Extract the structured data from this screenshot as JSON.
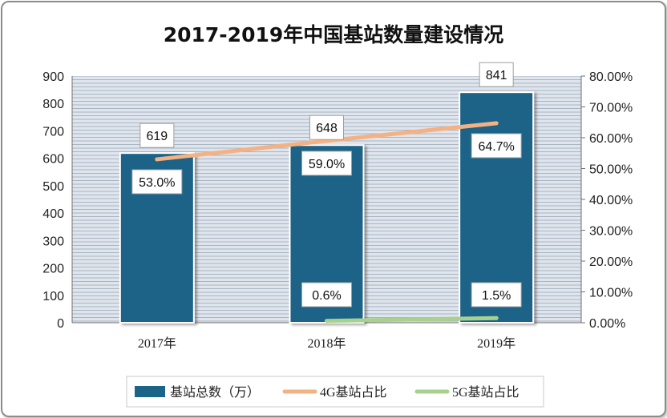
{
  "chart_data": {
    "type": "bar",
    "title": "2017-2019年中国基站数量建设情况",
    "categories": [
      "2017年",
      "2018年",
      "2019年"
    ],
    "series": [
      {
        "name": "基站总数（万）",
        "type": "bar",
        "axis": "left",
        "values": [
          619,
          648,
          841
        ],
        "labels": [
          "619",
          "648",
          "841"
        ],
        "color": "#1b6487"
      },
      {
        "name": "4G基站占比",
        "type": "line",
        "axis": "right",
        "values": [
          0.53,
          0.59,
          0.647
        ],
        "labels": [
          "53.0%",
          "59.0%",
          "64.7%"
        ],
        "color": "#f4b183"
      },
      {
        "name": "5G基站占比",
        "type": "line",
        "axis": "right",
        "values": [
          null,
          0.006,
          0.015
        ],
        "labels": [
          "",
          "0.6%",
          "1.5%"
        ],
        "color": "#a9d18e"
      }
    ],
    "y_left": {
      "min": 0,
      "max": 900,
      "step": 100,
      "ticks": [
        "0",
        "100",
        "200",
        "300",
        "400",
        "500",
        "600",
        "700",
        "800",
        "900"
      ]
    },
    "y_right": {
      "min": 0,
      "max": 0.8,
      "step": 0.1,
      "ticks": [
        "0.00%",
        "10.00%",
        "20.00%",
        "30.00%",
        "40.00%",
        "50.00%",
        "60.00%",
        "70.00%",
        "80.00%"
      ]
    },
    "grid": true,
    "legend": "bottom"
  }
}
